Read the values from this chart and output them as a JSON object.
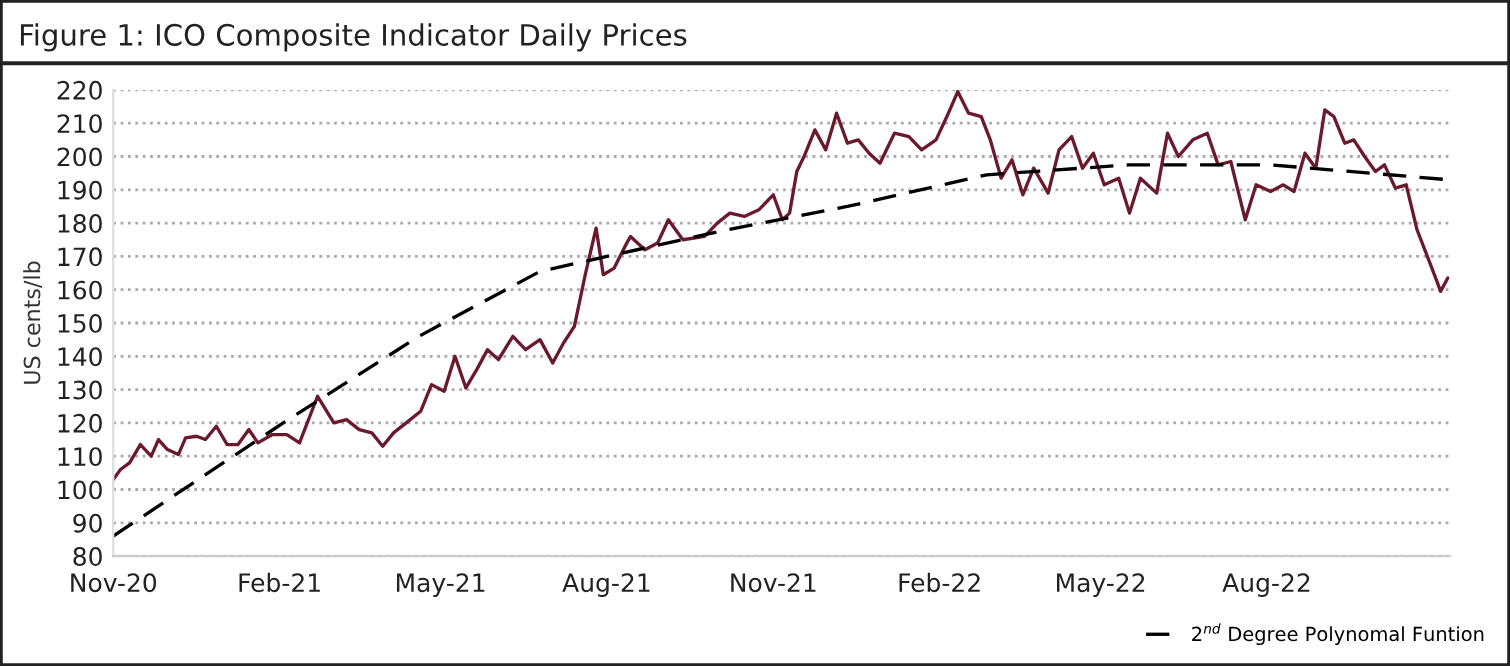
{
  "chart_data": {
    "type": "line",
    "title": "Figure 1: ICO Composite Indicator Daily Prices",
    "ylabel": "US cents/lb",
    "xlim": [
      "2020-11-01",
      "2022-11-10"
    ],
    "xticks": [
      {
        "value": "2020-11-01",
        "label": "Nov-20"
      },
      {
        "value": "2021-02-01",
        "label": "Feb-21"
      },
      {
        "value": "2021-05-01",
        "label": "May-21"
      },
      {
        "value": "2021-08-01",
        "label": "Aug-21"
      },
      {
        "value": "2021-11-01",
        "label": "Nov-21"
      },
      {
        "value": "2022-02-01",
        "label": "Feb-22"
      },
      {
        "value": "2022-05-01",
        "label": "May-22"
      },
      {
        "value": "2022-08-01",
        "label": "Aug-22"
      }
    ],
    "ylim": [
      80,
      220
    ],
    "yticks": [
      80,
      90,
      100,
      110,
      120,
      130,
      140,
      150,
      160,
      170,
      180,
      190,
      200,
      210,
      220
    ],
    "grid": "y",
    "legend": "bottom right",
    "series": [
      {
        "color": "#6b1a2e",
        "line_style": "solid",
        "x": [
          "2020-11-01",
          "2020-11-05",
          "2020-11-10",
          "2020-11-16",
          "2020-11-22",
          "2020-11-26",
          "2020-12-01",
          "2020-12-07",
          "2020-12-11",
          "2020-12-17",
          "2020-12-22",
          "2020-12-28",
          "2021-01-03",
          "2021-01-09",
          "2021-01-15",
          "2021-01-20",
          "2021-01-28",
          "2021-02-05",
          "2021-02-12",
          "2021-02-22",
          "2021-03-03",
          "2021-03-10",
          "2021-03-17",
          "2021-03-24",
          "2021-03-30",
          "2021-04-05",
          "2021-04-12",
          "2021-04-20",
          "2021-04-26",
          "2021-05-03",
          "2021-05-09",
          "2021-05-15",
          "2021-05-21",
          "2021-05-27",
          "2021-06-02",
          "2021-06-10",
          "2021-06-17",
          "2021-06-25",
          "2021-07-02",
          "2021-07-08",
          "2021-07-14",
          "2021-07-20",
          "2021-07-26",
          "2021-07-30",
          "2021-08-05",
          "2021-08-11",
          "2021-08-14",
          "2021-08-22",
          "2021-08-29",
          "2021-09-04",
          "2021-09-12",
          "2021-09-24",
          "2021-10-01",
          "2021-10-08",
          "2021-10-16",
          "2021-10-24",
          "2021-11-01",
          "2021-11-06",
          "2021-11-10",
          "2021-11-14",
          "2021-11-18",
          "2021-11-24",
          "2021-11-30",
          "2021-12-06",
          "2021-12-12",
          "2021-12-18",
          "2021-12-24",
          "2021-12-30",
          "2022-01-07",
          "2022-01-15",
          "2022-01-22",
          "2022-01-30",
          "2022-02-05",
          "2022-02-11",
          "2022-02-17",
          "2022-02-24",
          "2022-03-01",
          "2022-03-07",
          "2022-03-13",
          "2022-03-19",
          "2022-03-25",
          "2022-04-02",
          "2022-04-08",
          "2022-04-15",
          "2022-04-21",
          "2022-04-27",
          "2022-05-03",
          "2022-05-11",
          "2022-05-17",
          "2022-05-23",
          "2022-06-01",
          "2022-06-07",
          "2022-06-13",
          "2022-06-21",
          "2022-06-29",
          "2022-07-05",
          "2022-07-12",
          "2022-07-20",
          "2022-07-26",
          "2022-08-03",
          "2022-08-10",
          "2022-08-16",
          "2022-08-22",
          "2022-08-28",
          "2022-09-02",
          "2022-09-07",
          "2022-09-13",
          "2022-09-18",
          "2022-09-24",
          "2022-09-30",
          "2022-10-05",
          "2022-10-11",
          "2022-10-17",
          "2022-10-23",
          "2022-10-28",
          "2022-11-03",
          "2022-11-05",
          "2022-11-09"
        ],
        "values": [
          103,
          106,
          108,
          113.5,
          110,
          115,
          112,
          110.5,
          115.5,
          116,
          115,
          119,
          113.5,
          113.5,
          118,
          114,
          116.5,
          116.5,
          114,
          128,
          120,
          121,
          118,
          117,
          113,
          117,
          120,
          123.5,
          131.5,
          129.5,
          140,
          130.5,
          136,
          142,
          139,
          146,
          142,
          145,
          138,
          144,
          149,
          164.5,
          178.5,
          164.5,
          166.5,
          173,
          176,
          172,
          174,
          181,
          175,
          176,
          180,
          183,
          182,
          184,
          188.5,
          181,
          183,
          195.5,
          200,
          208,
          202,
          213,
          204,
          205,
          201,
          198,
          207,
          206,
          202,
          205,
          212,
          219.5,
          213,
          212,
          205,
          193.5,
          199,
          188.5,
          196.5,
          189,
          202,
          206,
          196.5,
          201,
          191.5,
          193.5,
          183,
          193.5,
          189,
          207,
          200,
          205,
          207,
          197.5,
          198.5,
          181,
          191.5,
          189.5,
          191.5,
          189.5,
          201,
          196.5,
          214,
          212,
          204,
          205,
          200,
          195.5,
          197.5,
          190.5,
          191.5,
          178,
          171,
          162.5,
          159.5,
          163.5
        ]
      },
      {
        "name": "2$^{nd}$ Degree Polynomal Funtion",
        "color": "#000000",
        "line_style": "dashed",
        "x": [
          "2020-11-01",
          "2021-02-03",
          "2021-04-19",
          "2021-06-25",
          "2021-10-02",
          "2021-12-12",
          "2022-02-27",
          "2022-05-17",
          "2022-08-03",
          "2022-11-10"
        ],
        "values": [
          86,
          120,
          146,
          165.5,
          177.5,
          185,
          194.5,
          197.5,
          197.5,
          193
        ]
      }
    ]
  }
}
